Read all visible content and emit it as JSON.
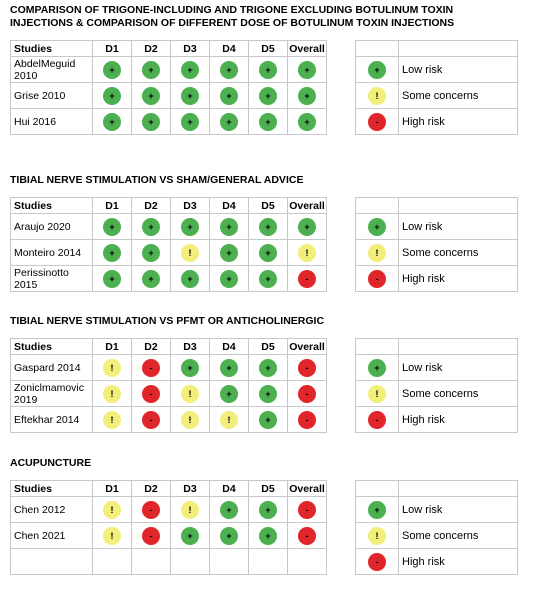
{
  "sections": [
    {
      "title": "COMPARISON OF TRIGONE-INCLUDING AND TRIGONE EXCLUDING BOTULINUM TOXIN INJECTIONS & COMPARISON OF DIFFERENT DOSE OF BOTULINUM TOXIN INJECTIONS",
      "headers": [
        "Studies",
        "D1",
        "D2",
        "D3",
        "D4",
        "D5",
        "Overall"
      ],
      "rows": [
        {
          "study": "AbdelMeguid 2010",
          "judgments": [
            "+",
            "+",
            "+",
            "+",
            "+",
            "+"
          ]
        },
        {
          "study": "Grise 2010",
          "judgments": [
            "+",
            "+",
            "+",
            "+",
            "+",
            "+"
          ]
        },
        {
          "study": "Hui 2016",
          "judgments": [
            "+",
            "+",
            "+",
            "+",
            "+",
            "+"
          ]
        }
      ],
      "legend": [
        {
          "symbol": "+",
          "label": "Low risk",
          "color": "#4caf50"
        },
        {
          "symbol": "!",
          "label": "Some concerns",
          "color": "#f2ee7a"
        },
        {
          "symbol": "-",
          "label": "High risk",
          "color": "#e0262a"
        }
      ]
    },
    {
      "title": "TIBIAL NERVE STIMULATION VS SHAM/GENERAL ADVICE",
      "headers": [
        "Studies",
        "D1",
        "D2",
        "D3",
        "D4",
        "D5",
        "Overall"
      ],
      "rows": [
        {
          "study": "Araujo 2020",
          "judgments": [
            "+",
            "+",
            "+",
            "+",
            "+",
            "+"
          ]
        },
        {
          "study": "Monteiro 2014",
          "judgments": [
            "+",
            "+",
            "!",
            "+",
            "+",
            "!"
          ]
        },
        {
          "study": "Perissinotto 2015",
          "judgments": [
            "+",
            "+",
            "+",
            "+",
            "+",
            "-"
          ]
        }
      ],
      "legend": [
        {
          "symbol": "+",
          "label": "Low risk",
          "color": "#4caf50"
        },
        {
          "symbol": "!",
          "label": "Some concerns",
          "color": "#f2ee7a"
        },
        {
          "symbol": "-",
          "label": "High risk",
          "color": "#e0262a"
        }
      ]
    },
    {
      "title": "TIBIAL NERVE STIMULATION VS PFMT OR ANTICHOLINERGIC",
      "headers": [
        "Studies",
        "D1",
        "D2",
        "D3",
        "D4",
        "D5",
        "Overall"
      ],
      "rows": [
        {
          "study": "Gaspard 2014",
          "judgments": [
            "!",
            "-",
            "+",
            "+",
            "+",
            "-"
          ]
        },
        {
          "study": "Zoniclmamovic 2019",
          "judgments": [
            "!",
            "-",
            "!",
            "+",
            "+",
            "-"
          ]
        },
        {
          "study": "Eftekhar 2014",
          "judgments": [
            "!",
            "-",
            "!",
            "!",
            "+",
            "-"
          ]
        }
      ],
      "legend": [
        {
          "symbol": "+",
          "label": "Low risk",
          "color": "#4caf50"
        },
        {
          "symbol": "!",
          "label": "Some concerns",
          "color": "#f2ee7a"
        },
        {
          "symbol": "-",
          "label": "High risk",
          "color": "#e0262a"
        }
      ]
    },
    {
      "title": "ACUPUNCTURE",
      "headers": [
        "Studies",
        "D1",
        "D2",
        "D3",
        "D4",
        "D5",
        "Overall"
      ],
      "rows": [
        {
          "study": "Chen 2012",
          "judgments": [
            "!",
            "-",
            "!",
            "+",
            "+",
            "-"
          ]
        },
        {
          "study": "Chen 2021",
          "judgments": [
            "!",
            "-",
            "+",
            "+",
            "+",
            "-"
          ]
        }
      ],
      "legend": [
        {
          "symbol": "+",
          "label": "Low risk",
          "color": "#4caf50"
        },
        {
          "symbol": "!",
          "label": "Some concerns",
          "color": "#f2ee7a"
        },
        {
          "symbol": "-",
          "label": "High risk",
          "color": "#e0262a"
        }
      ]
    }
  ]
}
